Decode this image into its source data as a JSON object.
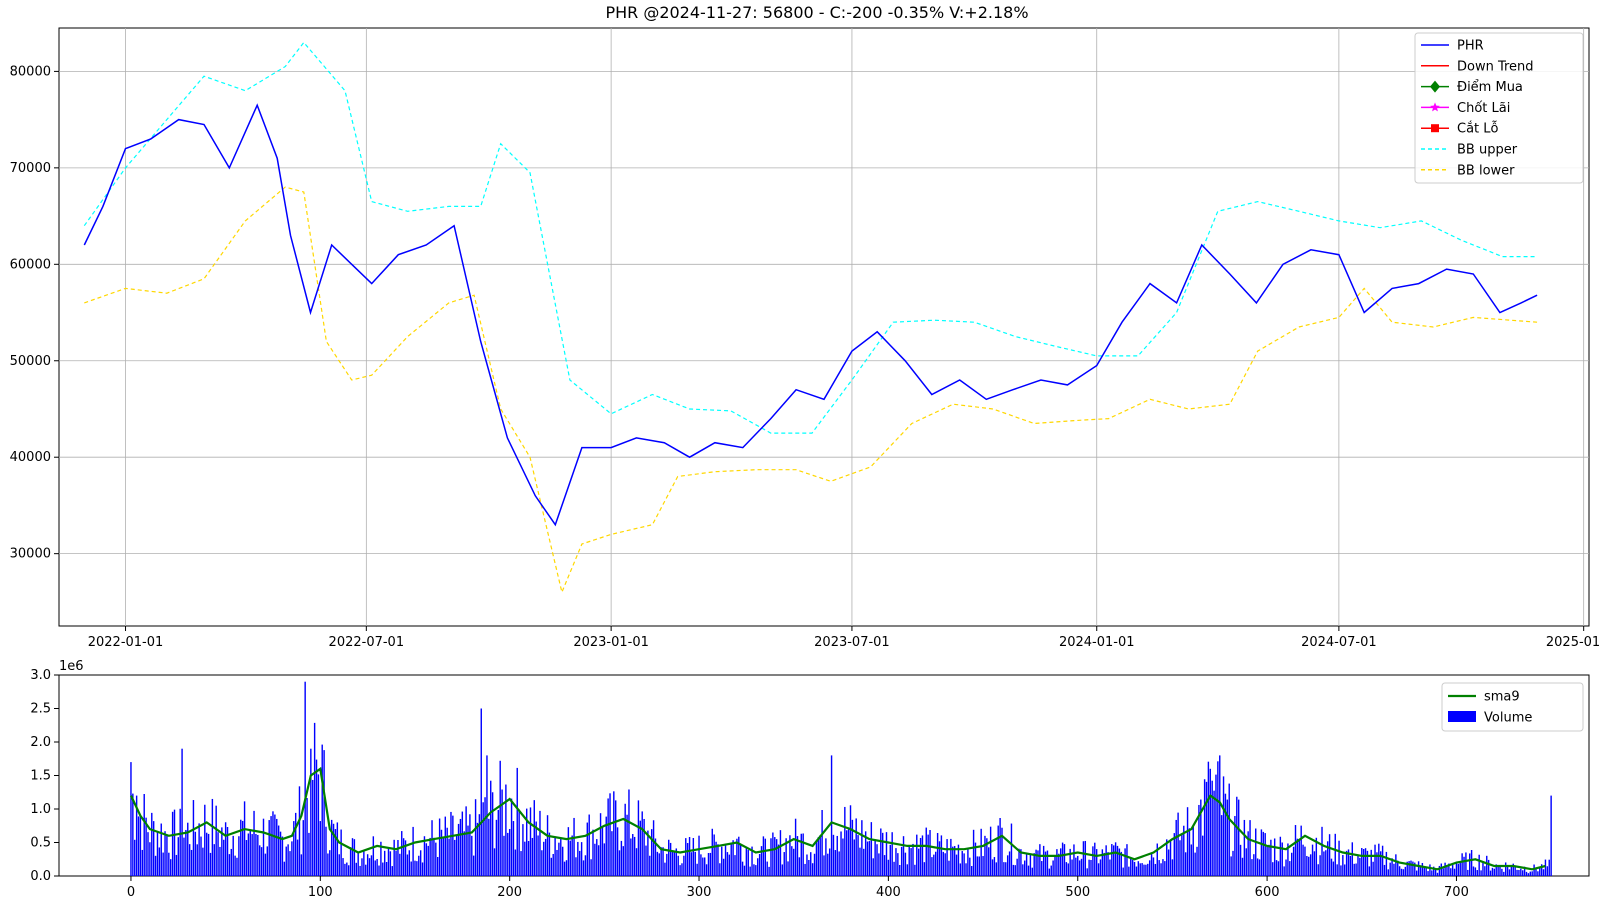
{
  "chart_data": [
    {
      "type": "line",
      "title": "PHR @2024-11-27: 56800 - C:-200 -0.35% V:+2.18%",
      "x_axis": {
        "type": "date",
        "range": [
          "2021-11-12",
          "2025-01-05"
        ],
        "ticks": [
          "2022-01-01",
          "2022-07-01",
          "2023-01-01",
          "2023-07-01",
          "2024-01-01",
          "2024-07-01",
          "2025-01-01"
        ]
      },
      "y_axis": {
        "range": [
          22500,
          84500
        ],
        "ticks": [
          30000,
          40000,
          50000,
          60000,
          70000,
          80000
        ],
        "tick_labels": [
          "30000",
          "40000",
          "50000",
          "60000",
          "70000",
          "80000"
        ]
      },
      "grid": true,
      "legend_position": "top-right",
      "legend": [
        {
          "label": "PHR",
          "color": "#0000ff",
          "style": "line"
        },
        {
          "label": "Down Trend",
          "color": "#ff0000",
          "style": "line"
        },
        {
          "label": "Điểm Mua",
          "color": "#008000",
          "style": "diamond"
        },
        {
          "label": "Chốt Lãi",
          "color": "#ff00ff",
          "style": "star"
        },
        {
          "label": "Cắt Lỗ",
          "color": "#ff0000",
          "style": "square"
        },
        {
          "label": "BB upper",
          "color": "#00ffff",
          "style": "dashed"
        },
        {
          "label": "BB lower",
          "color": "#ffd700",
          "style": "dashed"
        }
      ],
      "series": [
        {
          "name": "PHR",
          "color": "#0000ff",
          "x": [
            "2021-12-01",
            "2021-12-15",
            "2022-01-01",
            "2022-01-20",
            "2022-02-10",
            "2022-03-01",
            "2022-03-20",
            "2022-04-10",
            "2022-04-25",
            "2022-05-05",
            "2022-05-20",
            "2022-06-05",
            "2022-06-20",
            "2022-07-05",
            "2022-07-25",
            "2022-08-15",
            "2022-09-05",
            "2022-09-25",
            "2022-10-15",
            "2022-11-05",
            "2022-11-20",
            "2022-12-10",
            "2023-01-01",
            "2023-01-20",
            "2023-02-10",
            "2023-03-01",
            "2023-03-20",
            "2023-04-10",
            "2023-05-01",
            "2023-05-20",
            "2023-06-10",
            "2023-07-01",
            "2023-07-20",
            "2023-08-10",
            "2023-08-30",
            "2023-09-20",
            "2023-10-10",
            "2023-10-30",
            "2023-11-20",
            "2023-12-10",
            "2024-01-01",
            "2024-01-20",
            "2024-02-10",
            "2024-03-01",
            "2024-03-20",
            "2024-04-10",
            "2024-04-30",
            "2024-05-20",
            "2024-06-10",
            "2024-07-01",
            "2024-07-20",
            "2024-08-10",
            "2024-08-30",
            "2024-09-20",
            "2024-10-10",
            "2024-10-30",
            "2024-11-15",
            "2024-11-27"
          ],
          "y": [
            62000,
            66000,
            72000,
            73000,
            75000,
            74500,
            70000,
            76500,
            71000,
            63000,
            55000,
            62000,
            60000,
            58000,
            61000,
            62000,
            64000,
            52000,
            42000,
            36000,
            33000,
            41000,
            41000,
            42000,
            41500,
            40000,
            41500,
            41000,
            44000,
            47000,
            46000,
            51000,
            53000,
            50000,
            46500,
            48000,
            46000,
            47000,
            48000,
            47500,
            49500,
            54000,
            58000,
            56000,
            62000,
            59000,
            56000,
            60000,
            61500,
            61000,
            55000,
            57500,
            58000,
            59500,
            59000,
            55000,
            56000,
            56800
          ]
        },
        {
          "name": "BB upper",
          "color": "#00ffff",
          "x": [
            "2021-12-01",
            "2022-01-01",
            "2022-02-01",
            "2022-03-01",
            "2022-04-01",
            "2022-05-01",
            "2022-05-15",
            "2022-06-15",
            "2022-07-05",
            "2022-08-01",
            "2022-09-01",
            "2022-09-25",
            "2022-10-10",
            "2022-11-01",
            "2022-12-01",
            "2023-01-01",
            "2023-02-01",
            "2023-03-01",
            "2023-04-01",
            "2023-05-01",
            "2023-06-01",
            "2023-07-01",
            "2023-08-01",
            "2023-09-01",
            "2023-10-01",
            "2023-11-01",
            "2023-12-01",
            "2024-01-01",
            "2024-02-01",
            "2024-03-01",
            "2024-04-01",
            "2024-05-01",
            "2024-06-01",
            "2024-07-01",
            "2024-08-01",
            "2024-09-01",
            "2024-10-01",
            "2024-11-01",
            "2024-11-27"
          ],
          "y": [
            64000,
            70000,
            75000,
            79500,
            78000,
            80500,
            83000,
            78000,
            66500,
            65500,
            66000,
            66000,
            72500,
            69500,
            48000,
            44500,
            46500,
            45000,
            44800,
            42500,
            42500,
            48000,
            54000,
            54200,
            54000,
            52500,
            51500,
            50500,
            50500,
            55000,
            65500,
            66500,
            65500,
            64500,
            63800,
            64500,
            62500,
            60800,
            60800
          ]
        },
        {
          "name": "BB lower",
          "color": "#ffd700",
          "x": [
            "2021-12-01",
            "2022-01-01",
            "2022-02-01",
            "2022-03-01",
            "2022-04-01",
            "2022-05-01",
            "2022-05-15",
            "2022-06-01",
            "2022-06-20",
            "2022-07-05",
            "2022-08-01",
            "2022-09-01",
            "2022-09-20",
            "2022-10-10",
            "2022-11-01",
            "2022-11-25",
            "2022-12-10",
            "2023-01-01",
            "2023-02-01",
            "2023-02-20",
            "2023-03-20",
            "2023-04-20",
            "2023-05-20",
            "2023-06-15",
            "2023-07-15",
            "2023-08-15",
            "2023-09-15",
            "2023-10-15",
            "2023-11-15",
            "2023-12-15",
            "2024-01-10",
            "2024-02-10",
            "2024-03-10",
            "2024-04-10",
            "2024-05-01",
            "2024-06-01",
            "2024-07-01",
            "2024-07-20",
            "2024-08-10",
            "2024-09-10",
            "2024-10-10",
            "2024-11-27"
          ],
          "y": [
            56000,
            57500,
            57000,
            58500,
            64500,
            68000,
            67500,
            52000,
            48000,
            48500,
            52500,
            56000,
            56800,
            45000,
            40000,
            26000,
            31000,
            32000,
            33000,
            38000,
            38500,
            38700,
            38700,
            37500,
            39000,
            43500,
            45500,
            45000,
            43500,
            43800,
            44000,
            46000,
            45000,
            45500,
            51000,
            53500,
            54500,
            57500,
            54000,
            53500,
            54500,
            54000
          ]
        }
      ]
    },
    {
      "type": "bar",
      "x_axis": {
        "range": [
          -38,
          770
        ],
        "ticks": [
          0,
          100,
          200,
          300,
          400,
          500,
          600,
          700
        ],
        "tick_labels": [
          "0",
          "100",
          "200",
          "300",
          "400",
          "500",
          "600",
          "700"
        ]
      },
      "y_axis": {
        "range": [
          0,
          3.0
        ],
        "ticks": [
          0.0,
          0.5,
          1.0,
          1.5,
          2.0,
          2.5,
          3.0
        ],
        "tick_labels": [
          "0.0",
          "0.5",
          "1.0",
          "1.5",
          "2.0",
          "2.5",
          "3.0"
        ],
        "offset_label": "1e6"
      },
      "grid": false,
      "legend_position": "top-right",
      "legend": [
        {
          "label": "sma9",
          "color": "#008000",
          "style": "line"
        },
        {
          "label": "Volume",
          "color": "#0000ff",
          "style": "bar"
        }
      ],
      "series": [
        {
          "name": "sma9",
          "color": "#008000",
          "x": [
            0,
            5,
            10,
            20,
            30,
            40,
            50,
            60,
            70,
            80,
            85,
            90,
            95,
            100,
            105,
            110,
            120,
            130,
            140,
            150,
            160,
            170,
            180,
            190,
            200,
            210,
            220,
            230,
            240,
            250,
            260,
            270,
            280,
            290,
            300,
            310,
            320,
            330,
            340,
            350,
            360,
            370,
            380,
            390,
            400,
            410,
            420,
            430,
            440,
            450,
            460,
            470,
            480,
            490,
            500,
            510,
            520,
            530,
            540,
            550,
            560,
            565,
            570,
            575,
            580,
            590,
            600,
            610,
            620,
            630,
            640,
            650,
            660,
            670,
            680,
            690,
            700,
            710,
            720,
            730,
            740,
            747
          ],
          "y": [
            1.2,
            0.9,
            0.7,
            0.6,
            0.65,
            0.8,
            0.6,
            0.7,
            0.65,
            0.55,
            0.6,
            0.9,
            1.5,
            1.6,
            0.7,
            0.5,
            0.35,
            0.45,
            0.4,
            0.5,
            0.55,
            0.6,
            0.65,
            0.95,
            1.15,
            0.8,
            0.6,
            0.55,
            0.6,
            0.75,
            0.85,
            0.7,
            0.4,
            0.35,
            0.4,
            0.45,
            0.5,
            0.35,
            0.4,
            0.55,
            0.45,
            0.8,
            0.7,
            0.55,
            0.5,
            0.45,
            0.45,
            0.4,
            0.4,
            0.45,
            0.6,
            0.35,
            0.3,
            0.3,
            0.35,
            0.3,
            0.35,
            0.25,
            0.35,
            0.55,
            0.7,
            0.95,
            1.2,
            1.1,
            0.85,
            0.55,
            0.45,
            0.4,
            0.6,
            0.45,
            0.35,
            0.3,
            0.3,
            0.2,
            0.15,
            0.1,
            0.2,
            0.25,
            0.15,
            0.15,
            0.1,
            0.15
          ]
        },
        {
          "name": "Volume",
          "color": "#0000ff",
          "peaks": [
            {
              "x": 0,
              "y": 1.7
            },
            {
              "x": 3,
              "y": 1.2
            },
            {
              "x": 27,
              "y": 1.9
            },
            {
              "x": 92,
              "y": 2.9
            },
            {
              "x": 95,
              "y": 1.9
            },
            {
              "x": 185,
              "y": 2.5
            },
            {
              "x": 188,
              "y": 1.8
            },
            {
              "x": 370,
              "y": 1.8
            },
            {
              "x": 575,
              "y": 1.8
            },
            {
              "x": 570,
              "y": 1.6
            },
            {
              "x": 750,
              "y": 1.2
            }
          ]
        }
      ]
    }
  ]
}
